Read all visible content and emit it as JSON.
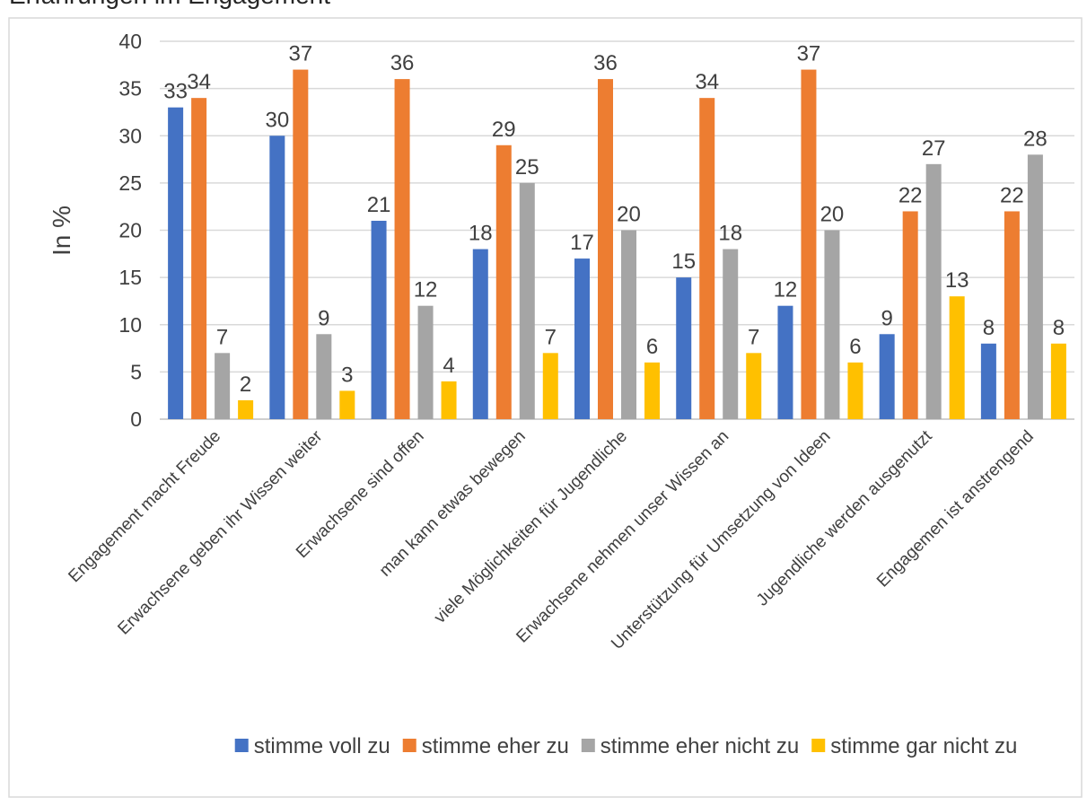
{
  "chart_data": {
    "type": "bar",
    "title": "Erfahrungen im Engagement",
    "ylabel": "In %",
    "xlabel": "",
    "ylim": [
      0,
      40
    ],
    "yticks": [
      0,
      5,
      10,
      15,
      20,
      25,
      30,
      35,
      40
    ],
    "grid": true,
    "legend_position": "bottom",
    "categories": [
      "Engagement macht Freude",
      "Erwachsene geben ihr Wissen weiter",
      "Erwachsene sind offen",
      "man kann etwas bewegen",
      "viele Möglichkeiten für Jugendliche",
      "Erwachsene nehmen unser Wissen an",
      "Unterstützung für Umsetzung von Ideen",
      "Jugendliche werden ausgenutzt",
      "Engagemen ist anstrengend"
    ],
    "series": [
      {
        "name": "stimme voll zu",
        "color": "#4472C4",
        "values": [
          33,
          30,
          21,
          18,
          17,
          15,
          12,
          9,
          8
        ]
      },
      {
        "name": "stimme eher zu",
        "color": "#ED7D31",
        "values": [
          34,
          37,
          36,
          29,
          36,
          34,
          37,
          22,
          22
        ]
      },
      {
        "name": "stimme eher nicht zu",
        "color": "#A5A5A5",
        "values": [
          7,
          9,
          12,
          25,
          20,
          18,
          20,
          27,
          28
        ]
      },
      {
        "name": "stimme gar nicht zu",
        "color": "#FFC000",
        "values": [
          2,
          3,
          4,
          7,
          6,
          7,
          6,
          13,
          8
        ]
      }
    ]
  }
}
